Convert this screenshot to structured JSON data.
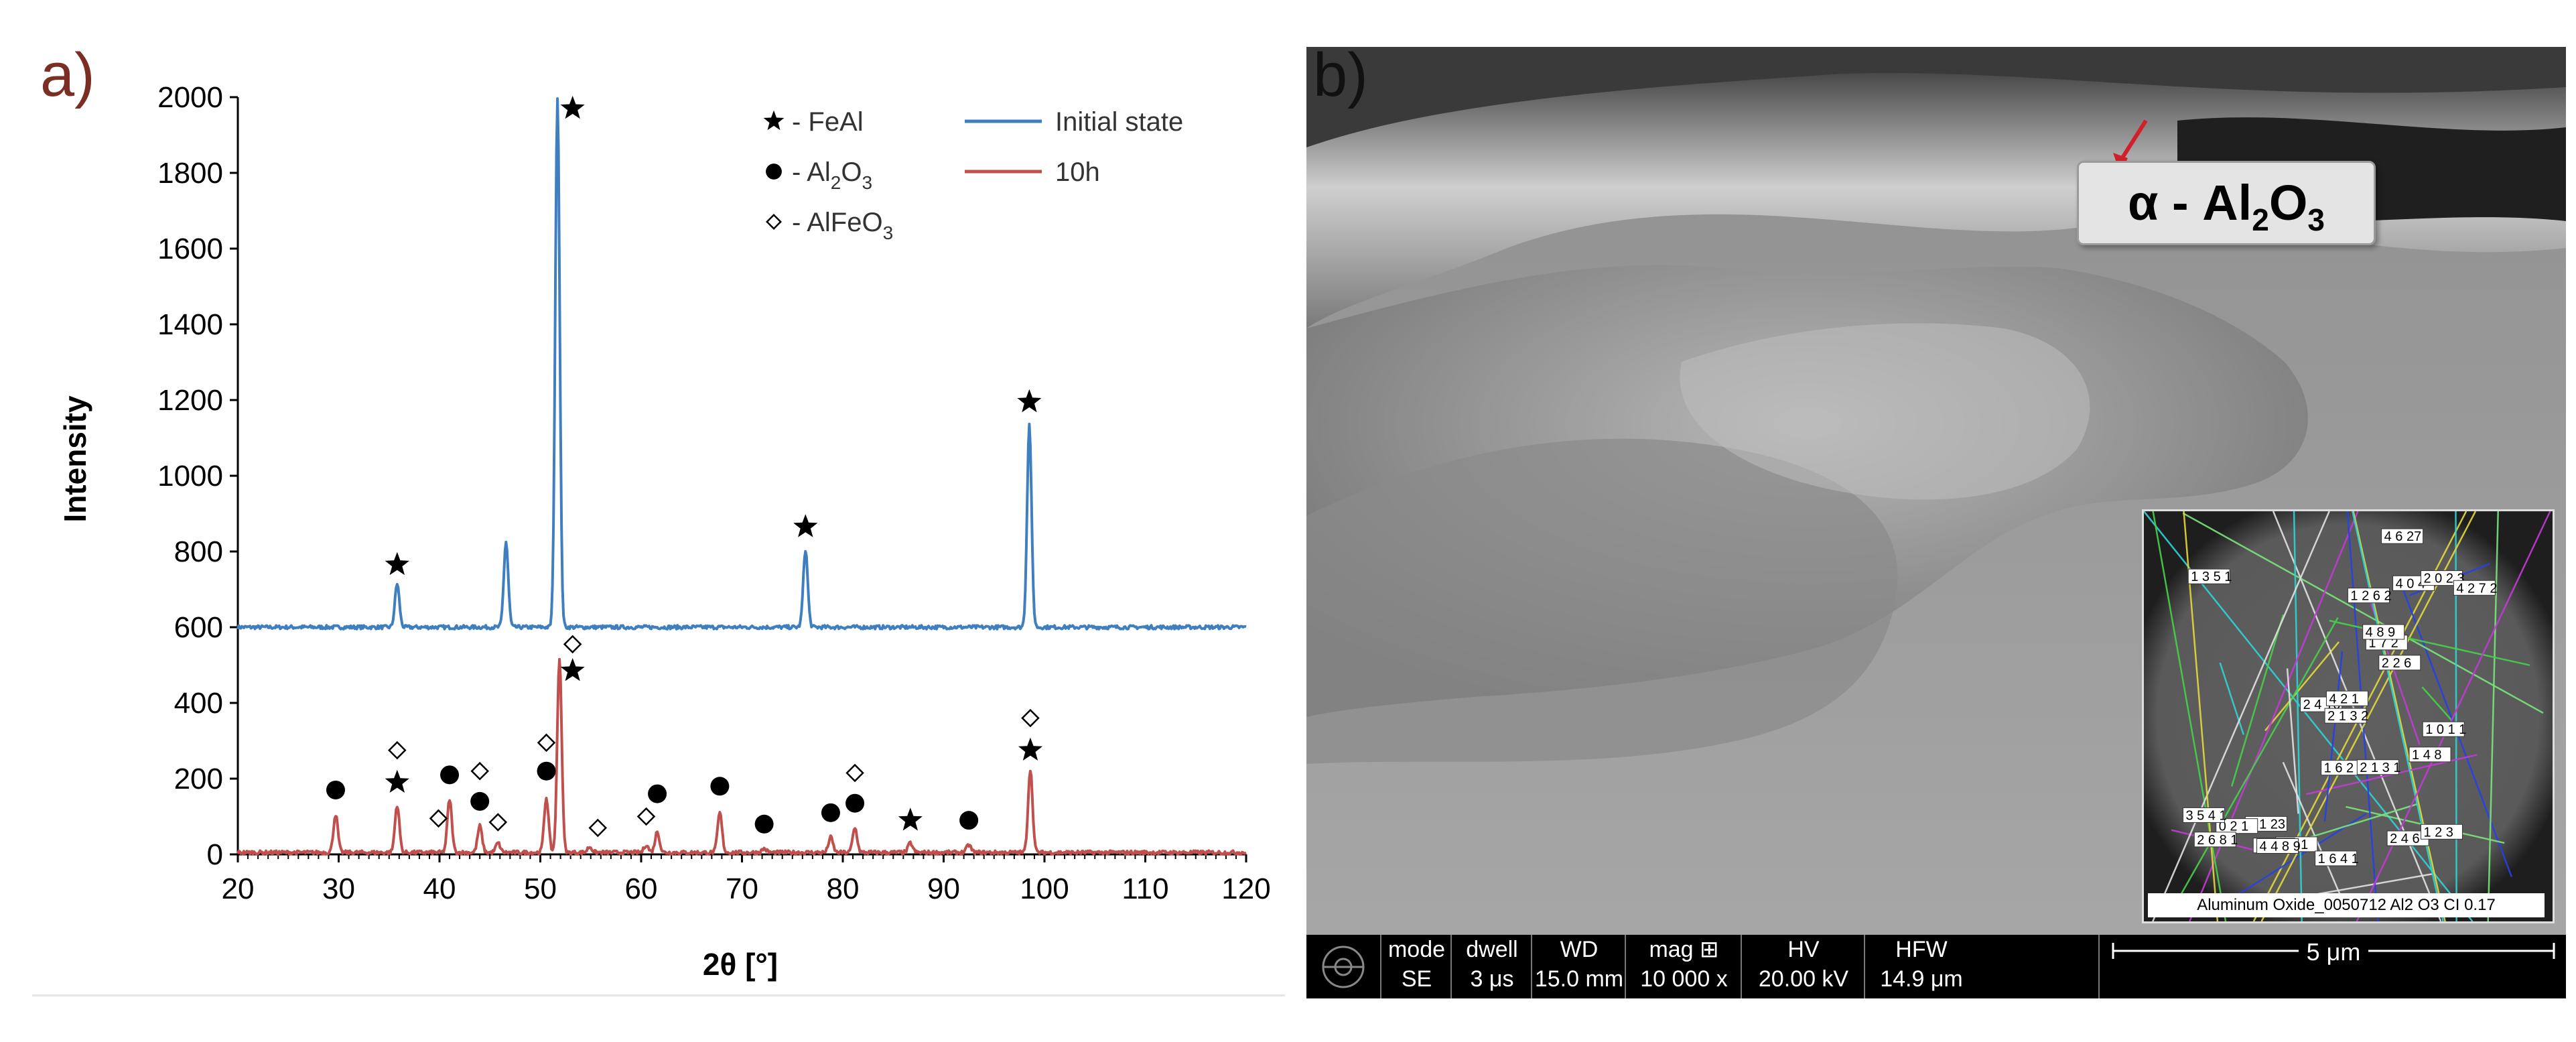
{
  "panel_a_label": "a)",
  "panel_b_label": "b)",
  "legend": {
    "symbols": [
      {
        "marker": "star",
        "text": "- FeAl"
      },
      {
        "marker": "dot",
        "text": "- Al",
        "sub": "2",
        "text2": "O",
        "sub2": "3"
      },
      {
        "marker": "diamond",
        "text": "- AlFeO",
        "sub": "3"
      }
    ],
    "series": [
      {
        "name": "Initial state",
        "color": "#3f7fbf"
      },
      {
        "name": "10h",
        "color": "#c0504d"
      }
    ]
  },
  "chart_data": {
    "type": "line",
    "xlabel": "2θ [°]",
    "ylabel": "Intensity",
    "xlim": [
      20,
      120
    ],
    "ylim": [
      0,
      2000
    ],
    "xticks": [
      20,
      30,
      40,
      50,
      60,
      70,
      80,
      90,
      100,
      110,
      120
    ],
    "yticks": [
      0,
      200,
      400,
      600,
      800,
      1000,
      1200,
      1400,
      1600,
      1800,
      2000
    ],
    "grid": false,
    "legend_position": "top-right",
    "series": [
      {
        "name": "Initial state",
        "color": "#3f7fbf",
        "baseline": 600,
        "peaks": [
          {
            "x": 35.8,
            "y": 715
          },
          {
            "x": 46.6,
            "y": 825
          },
          {
            "x": 51.7,
            "y": 2000
          },
          {
            "x": 76.3,
            "y": 805
          },
          {
            "x": 98.5,
            "y": 1135
          }
        ]
      },
      {
        "name": "10h",
        "color": "#c0504d",
        "baseline": 5,
        "peaks": [
          {
            "x": 29.7,
            "y": 105
          },
          {
            "x": 35.8,
            "y": 130
          },
          {
            "x": 41.0,
            "y": 145
          },
          {
            "x": 44.0,
            "y": 75
          },
          {
            "x": 45.8,
            "y": 30
          },
          {
            "x": 50.6,
            "y": 150
          },
          {
            "x": 51.9,
            "y": 520
          },
          {
            "x": 54.9,
            "y": 20
          },
          {
            "x": 60.5,
            "y": 25
          },
          {
            "x": 61.6,
            "y": 60
          },
          {
            "x": 67.8,
            "y": 110
          },
          {
            "x": 72.2,
            "y": 15
          },
          {
            "x": 78.8,
            "y": 45
          },
          {
            "x": 81.2,
            "y": 70
          },
          {
            "x": 86.7,
            "y": 30
          },
          {
            "x": 92.5,
            "y": 25
          },
          {
            "x": 98.6,
            "y": 225
          }
        ]
      }
    ],
    "markers": [
      {
        "type": "star",
        "x": 53.2,
        "y": 1970
      },
      {
        "type": "star",
        "x": 35.8,
        "y": 765
      },
      {
        "type": "star",
        "x": 76.3,
        "y": 865
      },
      {
        "type": "star",
        "x": 98.5,
        "y": 1195
      },
      {
        "type": "diamond",
        "x": 53.2,
        "y": 555
      },
      {
        "type": "star",
        "x": 53.2,
        "y": 485
      },
      {
        "type": "dot",
        "x": 29.7,
        "y": 170
      },
      {
        "type": "star",
        "x": 35.8,
        "y": 190
      },
      {
        "type": "diamond",
        "x": 35.8,
        "y": 275
      },
      {
        "type": "diamond",
        "x": 39.9,
        "y": 95
      },
      {
        "type": "dot",
        "x": 41.0,
        "y": 210
      },
      {
        "type": "dot",
        "x": 44.0,
        "y": 140
      },
      {
        "type": "diamond",
        "x": 44.0,
        "y": 220
      },
      {
        "type": "diamond",
        "x": 45.8,
        "y": 85
      },
      {
        "type": "dot",
        "x": 50.6,
        "y": 220
      },
      {
        "type": "diamond",
        "x": 50.6,
        "y": 295
      },
      {
        "type": "diamond",
        "x": 55.7,
        "y": 70
      },
      {
        "type": "diamond",
        "x": 60.5,
        "y": 100
      },
      {
        "type": "dot",
        "x": 61.6,
        "y": 160
      },
      {
        "type": "dot",
        "x": 67.8,
        "y": 180
      },
      {
        "type": "dot",
        "x": 72.2,
        "y": 80
      },
      {
        "type": "dot",
        "x": 78.8,
        "y": 110
      },
      {
        "type": "dot",
        "x": 81.2,
        "y": 135
      },
      {
        "type": "diamond",
        "x": 81.2,
        "y": 215
      },
      {
        "type": "star",
        "x": 86.7,
        "y": 90
      },
      {
        "type": "dot",
        "x": 92.5,
        "y": 90
      },
      {
        "type": "star",
        "x": 98.6,
        "y": 275
      },
      {
        "type": "diamond",
        "x": 98.6,
        "y": 360
      }
    ]
  },
  "sem": {
    "annotation": {
      "prefix": "α - Al",
      "sub1": "2",
      "mid": "O",
      "sub2": "3"
    },
    "info_bar": [
      {
        "header": "mode",
        "value": "SE"
      },
      {
        "header": "dwell",
        "value": "3 μs"
      },
      {
        "header": "WD",
        "value": "15.0 mm"
      },
      {
        "header": "mag ⊞",
        "value": "10 000 x"
      },
      {
        "header": "HV",
        "value": "20.00 kV"
      },
      {
        "header": "HFW",
        "value": "14.9 μm"
      }
    ],
    "scale_bar": "5 μm",
    "inset_caption": "Aluminum Oxide_0050712  Al2 O3    CI 0.17",
    "inset_labels": [
      "4 6 27",
      "2 4 16",
      "2 1 23",
      "1 4 8",
      "4 2 1",
      "2 4 6",
      "0 1 1",
      "0 2 1",
      "1 7 2",
      "1 2 3",
      "4 0 4",
      "2 2 6",
      "3 4 1",
      "2 0 2 3",
      "1 6 2 3",
      "4 8 9",
      "1 0 1 1",
      "2 1 3 2",
      "1 6 4 1",
      "4 4 8 9",
      "2 6 8 1",
      "1 2 6 2",
      "3 5 4 1",
      "1 3 5 1",
      "2 1 3 1",
      "4 2 7 2"
    ]
  }
}
